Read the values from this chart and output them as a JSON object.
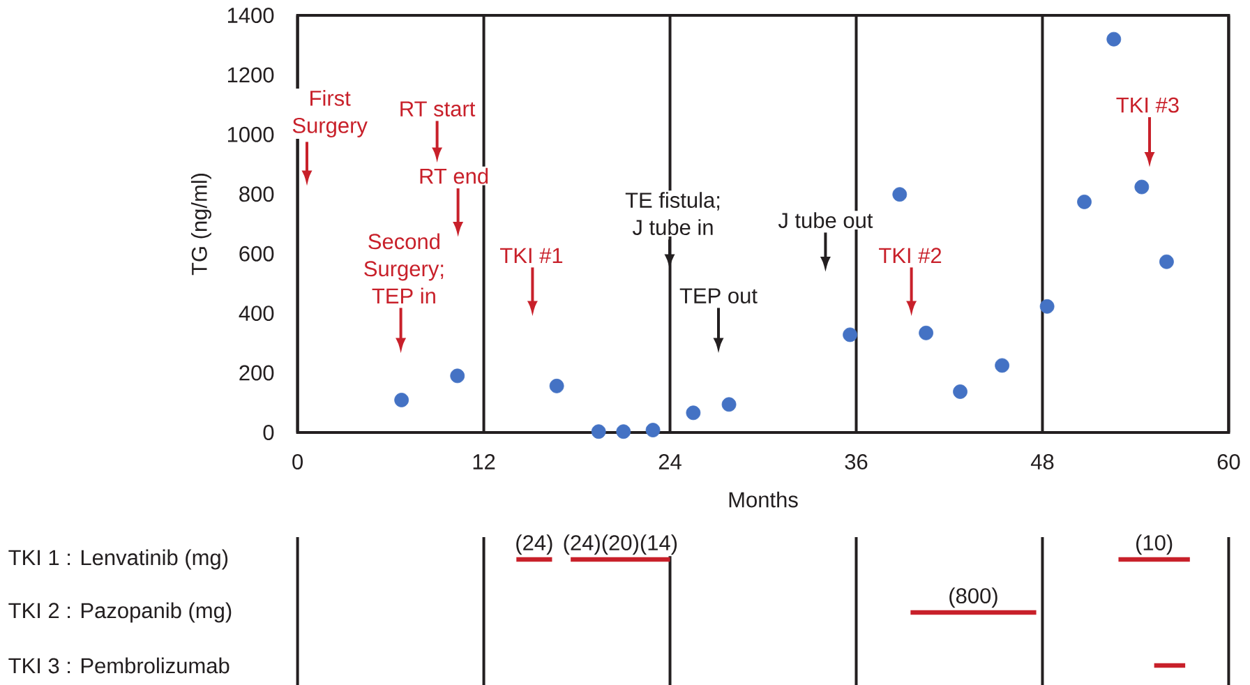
{
  "chart_data": [
    {
      "type": "scatter",
      "xlabel": "Months",
      "ylabel": "TG (ng/ml)",
      "x": [
        6.7,
        10.3,
        16.7,
        19.4,
        21.0,
        22.9,
        25.5,
        27.8,
        35.6,
        38.8,
        40.5,
        42.7,
        45.4,
        48.3,
        50.7,
        52.6,
        54.4,
        56.0
      ],
      "values": [
        109,
        190,
        156,
        3,
        3,
        8,
        66,
        94,
        328,
        799,
        334,
        137,
        225,
        423,
        774,
        1320,
        824,
        573
      ],
      "color": "#4472c4",
      "marker": "circle",
      "xlim": [
        0,
        60
      ],
      "xticks": [
        0,
        12,
        24,
        36,
        48,
        60
      ],
      "ylim": [
        0,
        1400
      ],
      "yticks": [
        0,
        200,
        400,
        600,
        800,
        1000,
        1200,
        1400
      ],
      "grid": "x",
      "annotations": [
        "First Surgery",
        "RT start",
        "RT end",
        "Second Surgery; TEP in",
        "TKI #1",
        "TE fistula; J tube in",
        "TEP out",
        "J tube out",
        "TKI #2",
        "TKI #3"
      ]
    },
    {
      "type": "bar",
      "orientation": "horizontal",
      "categories": [
        "TKI 1 : Lenvatinib (mg)",
        "TKI 2 : Pazopanib (mg)",
        "TKI 3 : Pembrolizumab"
      ],
      "series": [
        {
          "name": "(24)",
          "color": "#c8202a",
          "base": [
            14.1,
            null,
            null
          ],
          "values": [
            2.3,
            null,
            null
          ]
        },
        {
          "name": "(24)(20)(14)",
          "color": "#c8202a",
          "base": [
            17.6,
            null,
            null
          ],
          "values": [
            6.4,
            null,
            null
          ]
        },
        {
          "name": "(10)",
          "color": "#c8202a",
          "base": [
            52.9,
            null,
            null
          ],
          "values": [
            4.6,
            null,
            null
          ]
        },
        {
          "name": "(800)",
          "color": "#c8202a",
          "base": [
            null,
            39.5,
            null
          ],
          "values": [
            null,
            8.1,
            null
          ]
        },
        {
          "color": "#c8202a",
          "base": [
            null,
            null,
            55.2
          ],
          "values": [
            null,
            null,
            2.0
          ]
        }
      ],
      "xlim": [
        0,
        60
      ],
      "xticks": [
        0,
        12,
        24,
        36,
        48,
        60
      ],
      "grid": "x",
      "tick_labels": "y"
    }
  ]
}
